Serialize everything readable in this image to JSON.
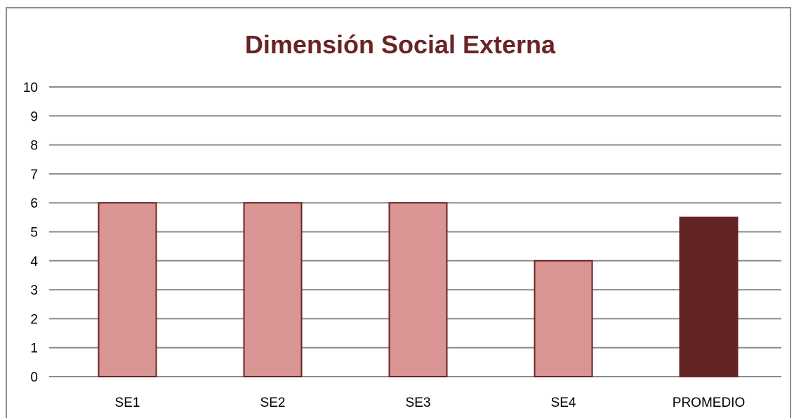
{
  "chart_data": {
    "type": "bar",
    "title": "Dimensión Social Externa",
    "xlabel": "",
    "ylabel": "",
    "categories": [
      "SE1",
      "SE2",
      "SE3",
      "SE4",
      "PROMEDIO"
    ],
    "values": [
      6,
      6,
      6,
      4,
      5.5
    ],
    "ylim": [
      0,
      10
    ],
    "yticks": [
      "0",
      "1",
      "2",
      "3",
      "4",
      "5",
      "6",
      "7",
      "8",
      "9",
      "10"
    ],
    "grid": true,
    "legend": "none",
    "colors": {
      "bar": "#d99594",
      "bar_highlight": "#632523",
      "bar_border": "#6a2424",
      "grid": "#8c8c8c",
      "title": "#6a2424"
    },
    "highlight_category": "PROMEDIO"
  }
}
